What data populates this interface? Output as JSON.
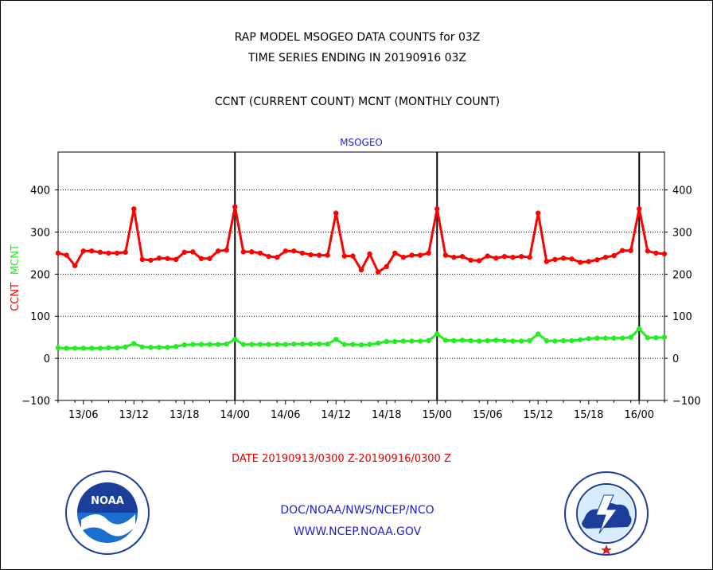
{
  "header": {
    "title": "RAP MODEL MSOGEO DATA COUNTS for 03Z",
    "subtitle": "TIME SERIES ENDING IN 20190916 03Z",
    "description": "CCNT (CURRENT COUNT) MCNT (MONTHLY COUNT)"
  },
  "chart_data": {
    "type": "line",
    "title": "MSOGEO",
    "ylabel_ccnt": "CCNT",
    "ylabel_mcnt": "MCNT",
    "xlabel": "DATE 20190913/0300 Z-20190916/0300 Z",
    "ylim": [
      -100,
      490
    ],
    "yticks": [
      -100,
      0,
      100,
      200,
      300,
      400
    ],
    "xticks": [
      "13/06",
      "13/12",
      "13/18",
      "14/00",
      "14/06",
      "14/12",
      "14/18",
      "15/00",
      "15/06",
      "15/12",
      "15/18",
      "16/00"
    ],
    "day_boundaries": [
      "14/00",
      "15/00",
      "16/00"
    ],
    "grid": true,
    "x_start": "13/03",
    "x_step_hours": 1,
    "x_end": "16/03",
    "series": [
      {
        "name": "CCNT",
        "color": "#ff0000",
        "values": [
          250,
          245,
          220,
          255,
          255,
          252,
          250,
          250,
          252,
          355,
          235,
          233,
          238,
          237,
          235,
          252,
          253,
          237,
          237,
          255,
          257,
          360,
          253,
          253,
          250,
          242,
          240,
          255,
          255,
          250,
          246,
          245,
          245,
          345,
          243,
          243,
          210,
          248,
          205,
          218,
          250,
          240,
          245,
          245,
          250,
          355,
          245,
          240,
          242,
          233,
          232,
          243,
          238,
          242,
          240,
          242,
          240,
          345,
          230,
          235,
          238,
          236,
          228,
          230,
          234,
          240,
          244,
          256,
          256,
          355,
          255,
          250,
          248
        ]
      },
      {
        "name": "MCNT",
        "color": "#22ee22",
        "values": [
          25,
          24,
          24,
          24,
          24,
          24,
          25,
          25,
          27,
          35,
          27,
          26,
          26,
          26,
          28,
          32,
          33,
          33,
          33,
          33,
          34,
          45,
          33,
          33,
          33,
          33,
          33,
          33,
          34,
          34,
          34,
          34,
          34,
          45,
          33,
          33,
          32,
          33,
          36,
          40,
          40,
          41,
          41,
          41,
          42,
          58,
          43,
          42,
          43,
          42,
          41,
          42,
          43,
          42,
          41,
          41,
          42,
          58,
          42,
          41,
          42,
          42,
          44,
          47,
          48,
          48,
          48,
          48,
          50,
          70,
          49,
          49,
          50
        ]
      }
    ]
  },
  "footer": {
    "line1": "DOC/NOAA/NWS/NCEP/NCO",
    "line2": "WWW.NCEP.NOAA.GOV"
  },
  "logos": {
    "left": {
      "icon": "noaa-logo",
      "text": "NOAA"
    },
    "right": {
      "icon": "nws-logo"
    }
  }
}
